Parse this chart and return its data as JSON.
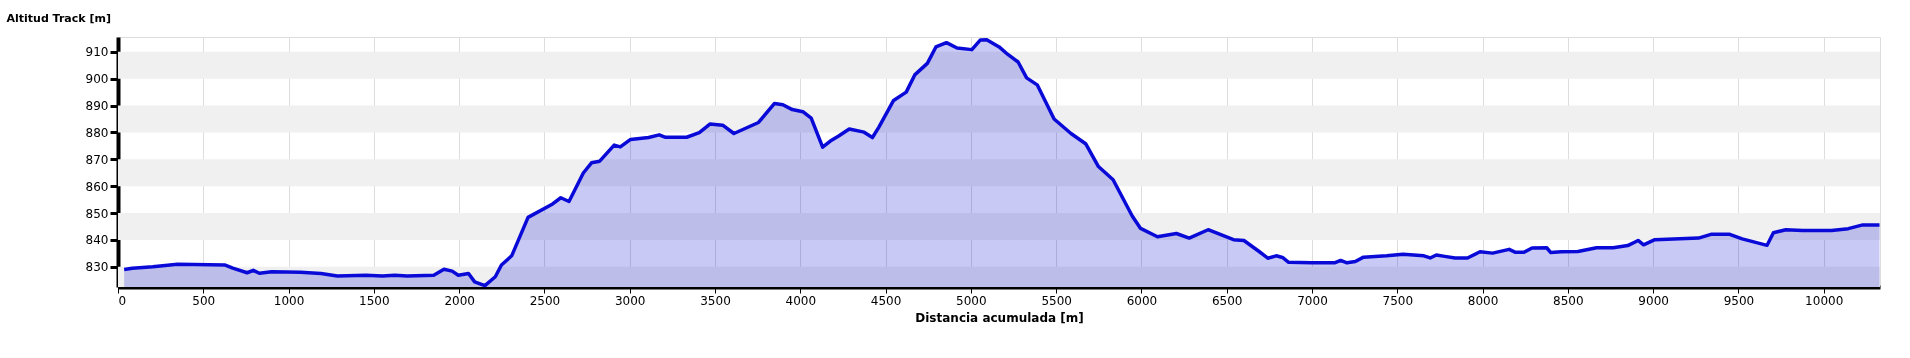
{
  "chart_data": {
    "type": "area",
    "xlabel": "Distancia acumulada [m]",
    "ylabel": "Altitud Track [m]",
    "x": [
      36,
      84,
      204,
      349,
      625,
      673,
      757,
      793,
      829,
      901,
      1070,
      1190,
      1286,
      1454,
      1550,
      1623,
      1695,
      1851,
      1911,
      1959,
      1995,
      2055,
      2091,
      2151,
      2212,
      2248,
      2308,
      2404,
      2548,
      2596,
      2644,
      2728,
      2776,
      2824,
      2909,
      2945,
      3005,
      3111,
      3173,
      3210,
      3334,
      3408,
      3470,
      3545,
      3611,
      3755,
      3849,
      3898,
      3953,
      4015,
      4064,
      4131,
      4176,
      4225,
      4287,
      4374,
      4423,
      4460,
      4547,
      4621,
      4671,
      4745,
      4795,
      4857,
      4919,
      5006,
      5056,
      5093,
      5166,
      5215,
      5277,
      5327,
      5389,
      5488,
      5587,
      5673,
      5748,
      5834,
      5946,
      5995,
      6094,
      6205,
      6280,
      6391,
      6540,
      6601,
      6688,
      6741,
      6790,
      6827,
      6863,
      6998,
      7132,
      7168,
      7205,
      7254,
      7302,
      7437,
      7534,
      7656,
      7693,
      7729,
      7778,
      7839,
      7912,
      7985,
      8059,
      8156,
      8193,
      8241,
      8290,
      8376,
      8400,
      8461,
      8559,
      8668,
      8766,
      8851,
      8912,
      8944,
      9010,
      9266,
      9339,
      9449,
      9522,
      9668,
      9705,
      9778,
      9876,
      10046,
      10144,
      10229,
      10327
    ],
    "series": [
      {
        "color": "#0a0ad8",
        "values": [
          829,
          829.5,
          830,
          831,
          830.7,
          829.5,
          827.8,
          828.7,
          827.6,
          828.2,
          828,
          827.5,
          826.6,
          826.9,
          826.6,
          826.9,
          826.6,
          826.9,
          829.1,
          828.4,
          826.9,
          827.5,
          824.4,
          823,
          826.3,
          830.7,
          834.1,
          848.4,
          853.4,
          855.7,
          854.3,
          864.9,
          868.7,
          869.3,
          875.3,
          874.6,
          877.4,
          878.1,
          879.1,
          878.2,
          878.2,
          879.9,
          883.1,
          882.7,
          879.6,
          883.7,
          890.8,
          890.3,
          888.5,
          887.7,
          885.3,
          874.5,
          876.8,
          878.7,
          881.3,
          880.1,
          878.1,
          881.9,
          891.9,
          895,
          901.4,
          905.7,
          911.8,
          913.4,
          911.4,
          910.8,
          914.4,
          914.5,
          911.8,
          909.1,
          906.2,
          900.3,
          897.7,
          885,
          879.6,
          875.8,
          867.3,
          862.4,
          848.9,
          844.3,
          841.2,
          842.4,
          840.7,
          843.8,
          840.1,
          839.8,
          835.8,
          833.2,
          834.1,
          833.5,
          831.7,
          831.5,
          831.5,
          832.4,
          831.5,
          832,
          833.6,
          834.1,
          834.7,
          834.1,
          833.3,
          834.4,
          833.9,
          833.3,
          833.3,
          835.6,
          835.1,
          836.5,
          835.4,
          835.4,
          837,
          837.1,
          835.3,
          835.6,
          835.7,
          837.1,
          837.1,
          837.9,
          839.8,
          838.2,
          840.1,
          840.7,
          842.1,
          842.1,
          840.4,
          838,
          842.7,
          843.8,
          843.5,
          843.5,
          844.2,
          845.6,
          845.6
        ]
      }
    ],
    "xlim": [
      0,
      10330
    ],
    "xticks": [
      0,
      500,
      1000,
      1500,
      2000,
      2500,
      3000,
      3500,
      4000,
      4500,
      5000,
      5500,
      6000,
      6500,
      7000,
      7500,
      8000,
      8500,
      9000,
      9500,
      10000
    ],
    "ylim": [
      822.5,
      915.5
    ],
    "yticks": [
      830,
      840,
      850,
      860,
      870,
      880,
      890,
      900,
      910
    ],
    "grid": "x",
    "bands": [
      {
        "axis": "y",
        "from": 822.5,
        "to": 830,
        "color": "#f0f0f0"
      },
      {
        "axis": "y",
        "from": 840,
        "to": 850,
        "color": "#f0f0f0"
      },
      {
        "axis": "y",
        "from": 860,
        "to": 870,
        "color": "#f0f0f0"
      },
      {
        "axis": "y",
        "from": 880,
        "to": 890,
        "color": "#f0f0f0"
      },
      {
        "axis": "y",
        "from": 900,
        "to": 910,
        "color": "#f0f0f0"
      }
    ]
  }
}
